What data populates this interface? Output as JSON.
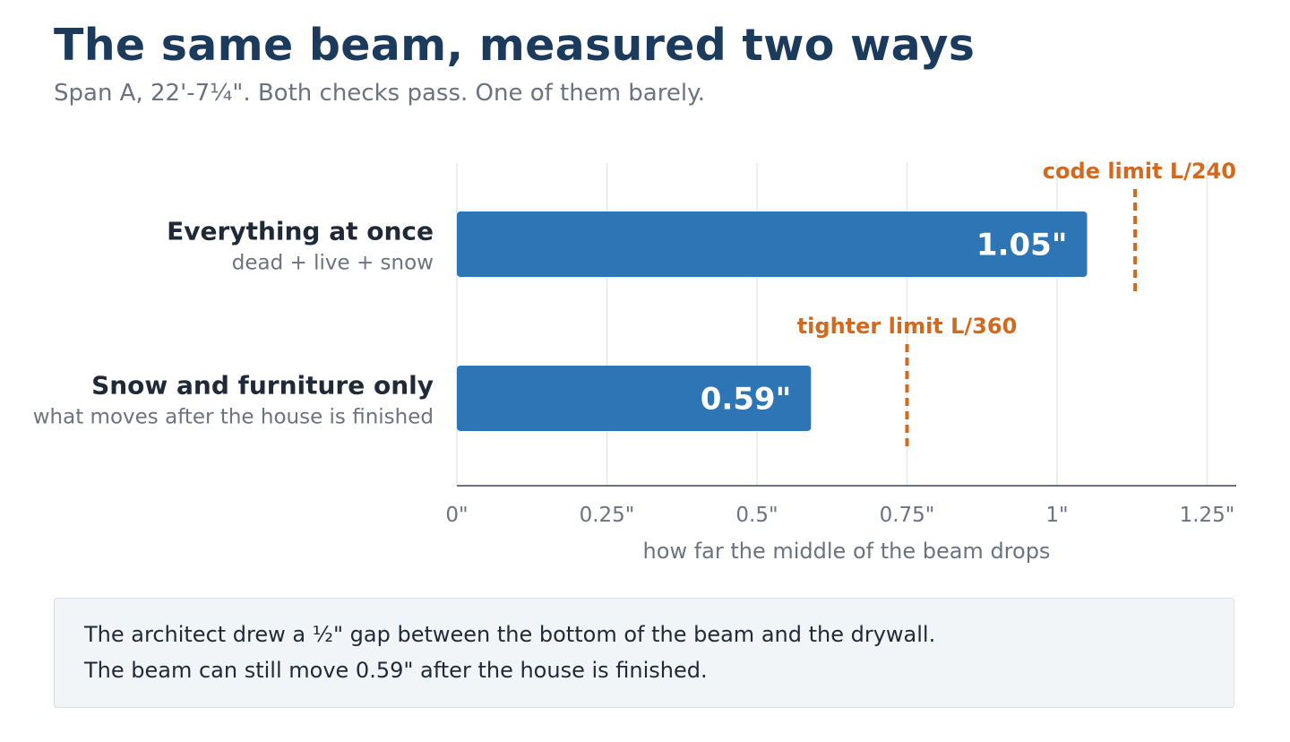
{
  "title": "The same beam, measured two ways",
  "subtitle": "Span A, 22'-7¼\". Both checks pass. One of them barely.",
  "chart_data": {
    "type": "bar",
    "orientation": "horizontal",
    "categories": [
      "Everything at once",
      "Snow and furniture only"
    ],
    "category_sublabels": [
      "dead + live + snow",
      "what moves after the house is finished"
    ],
    "values": [
      1.05,
      0.59
    ],
    "value_labels": [
      "1.05\"",
      "0.59\""
    ],
    "xlabel": "how far the middle of the beam drops",
    "xlim": [
      0,
      1.3
    ],
    "xticks": [
      0,
      0.25,
      0.5,
      0.75,
      1,
      1.25
    ],
    "xtick_labels": [
      "0\"",
      "0.25\"",
      "0.5\"",
      "0.75\"",
      "1\"",
      "1.25\""
    ],
    "grid": "vertical",
    "limits": [
      {
        "label": "code limit L/240",
        "value": 1.13,
        "applies_to": 0
      },
      {
        "label": "tighter limit L/360",
        "value": 0.75,
        "applies_to": 1
      }
    ],
    "colors": {
      "bar": "#2e75b6",
      "limit": "#d2691e",
      "grid": "#e5e7eb",
      "axis": "#6b7280",
      "category_label": "#1f2937",
      "sublabel": "#6b7280",
      "value_label": "#ffffff"
    }
  },
  "note": {
    "line1": "The architect drew a ½\" gap between the bottom of the beam and the drywall.",
    "line2": "The beam can still move 0.59\" after the house is finished."
  }
}
